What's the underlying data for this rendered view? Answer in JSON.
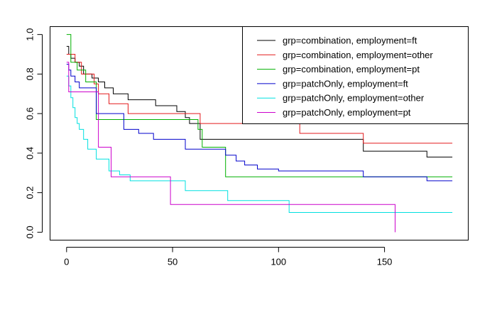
{
  "chart_data": {
    "type": "line",
    "title": "",
    "xlabel": "",
    "ylabel": "",
    "xlim": [
      -7.8,
      189.5
    ],
    "ylim": [
      -0.04,
      1.04
    ],
    "xticks": [
      0,
      50,
      100,
      150
    ],
    "yticks": [
      0.0,
      0.2,
      0.4,
      0.6,
      0.8,
      1.0
    ],
    "xtick_labels": [
      "0",
      "50",
      "100",
      "150"
    ],
    "ytick_labels": [
      "0.0",
      "0.2",
      "0.4",
      "0.6",
      "0.8",
      "1.0"
    ],
    "grid": false,
    "legend_position": "top-right",
    "step": true,
    "series": [
      {
        "name": "grp=combination, employment=ft",
        "color": "#000000",
        "x": [
          0,
          1,
          2,
          4,
          6,
          8,
          12,
          15,
          18,
          22,
          29,
          42,
          52,
          56,
          58,
          63,
          140,
          170,
          182
        ],
        "y": [
          0.94,
          0.9,
          0.88,
          0.86,
          0.84,
          0.8,
          0.78,
          0.76,
          0.73,
          0.7,
          0.67,
          0.64,
          0.61,
          0.58,
          0.55,
          0.47,
          0.41,
          0.38,
          0.38
        ]
      },
      {
        "name": "grp=combination, employment=other",
        "color": "#e31a1c",
        "x": [
          0,
          4,
          7,
          13,
          15,
          20,
          29,
          63,
          110,
          140,
          182
        ],
        "y": [
          0.9,
          0.86,
          0.8,
          0.75,
          0.7,
          0.65,
          0.6,
          0.55,
          0.5,
          0.45,
          0.45
        ]
      },
      {
        "name": "grp=combination, employment=pt",
        "color": "#00b000",
        "x": [
          0,
          2,
          5,
          9,
          14,
          62,
          64,
          75,
          182
        ],
        "y": [
          1.0,
          0.86,
          0.82,
          0.76,
          0.57,
          0.52,
          0.43,
          0.28,
          0.28
        ]
      },
      {
        "name": "grp=patchOnly, employment=ft",
        "color": "#0000cc",
        "x": [
          0,
          1,
          2,
          4,
          6,
          14,
          27,
          34,
          41,
          56,
          75,
          80,
          84,
          90,
          100,
          140,
          170,
          182
        ],
        "y": [
          0.85,
          0.82,
          0.79,
          0.76,
          0.73,
          0.6,
          0.52,
          0.5,
          0.47,
          0.42,
          0.39,
          0.36,
          0.34,
          0.32,
          0.31,
          0.28,
          0.26,
          0.26
        ]
      },
      {
        "name": "grp=patchOnly, employment=other",
        "color": "#00e0e0",
        "x": [
          0,
          1,
          2,
          3,
          4,
          5,
          6,
          8,
          10,
          14,
          20,
          25,
          30,
          56,
          76,
          105,
          182
        ],
        "y": [
          0.79,
          0.74,
          0.68,
          0.63,
          0.58,
          0.55,
          0.52,
          0.47,
          0.42,
          0.37,
          0.31,
          0.29,
          0.26,
          0.21,
          0.16,
          0.1,
          0.1
        ]
      },
      {
        "name": "grp=patchOnly, employment=pt",
        "color": "#cc00cc",
        "x": [
          0,
          1,
          15,
          21,
          49,
          155,
          155
        ],
        "y": [
          0.86,
          0.71,
          0.43,
          0.28,
          0.14,
          0.14,
          0.0
        ]
      }
    ]
  }
}
